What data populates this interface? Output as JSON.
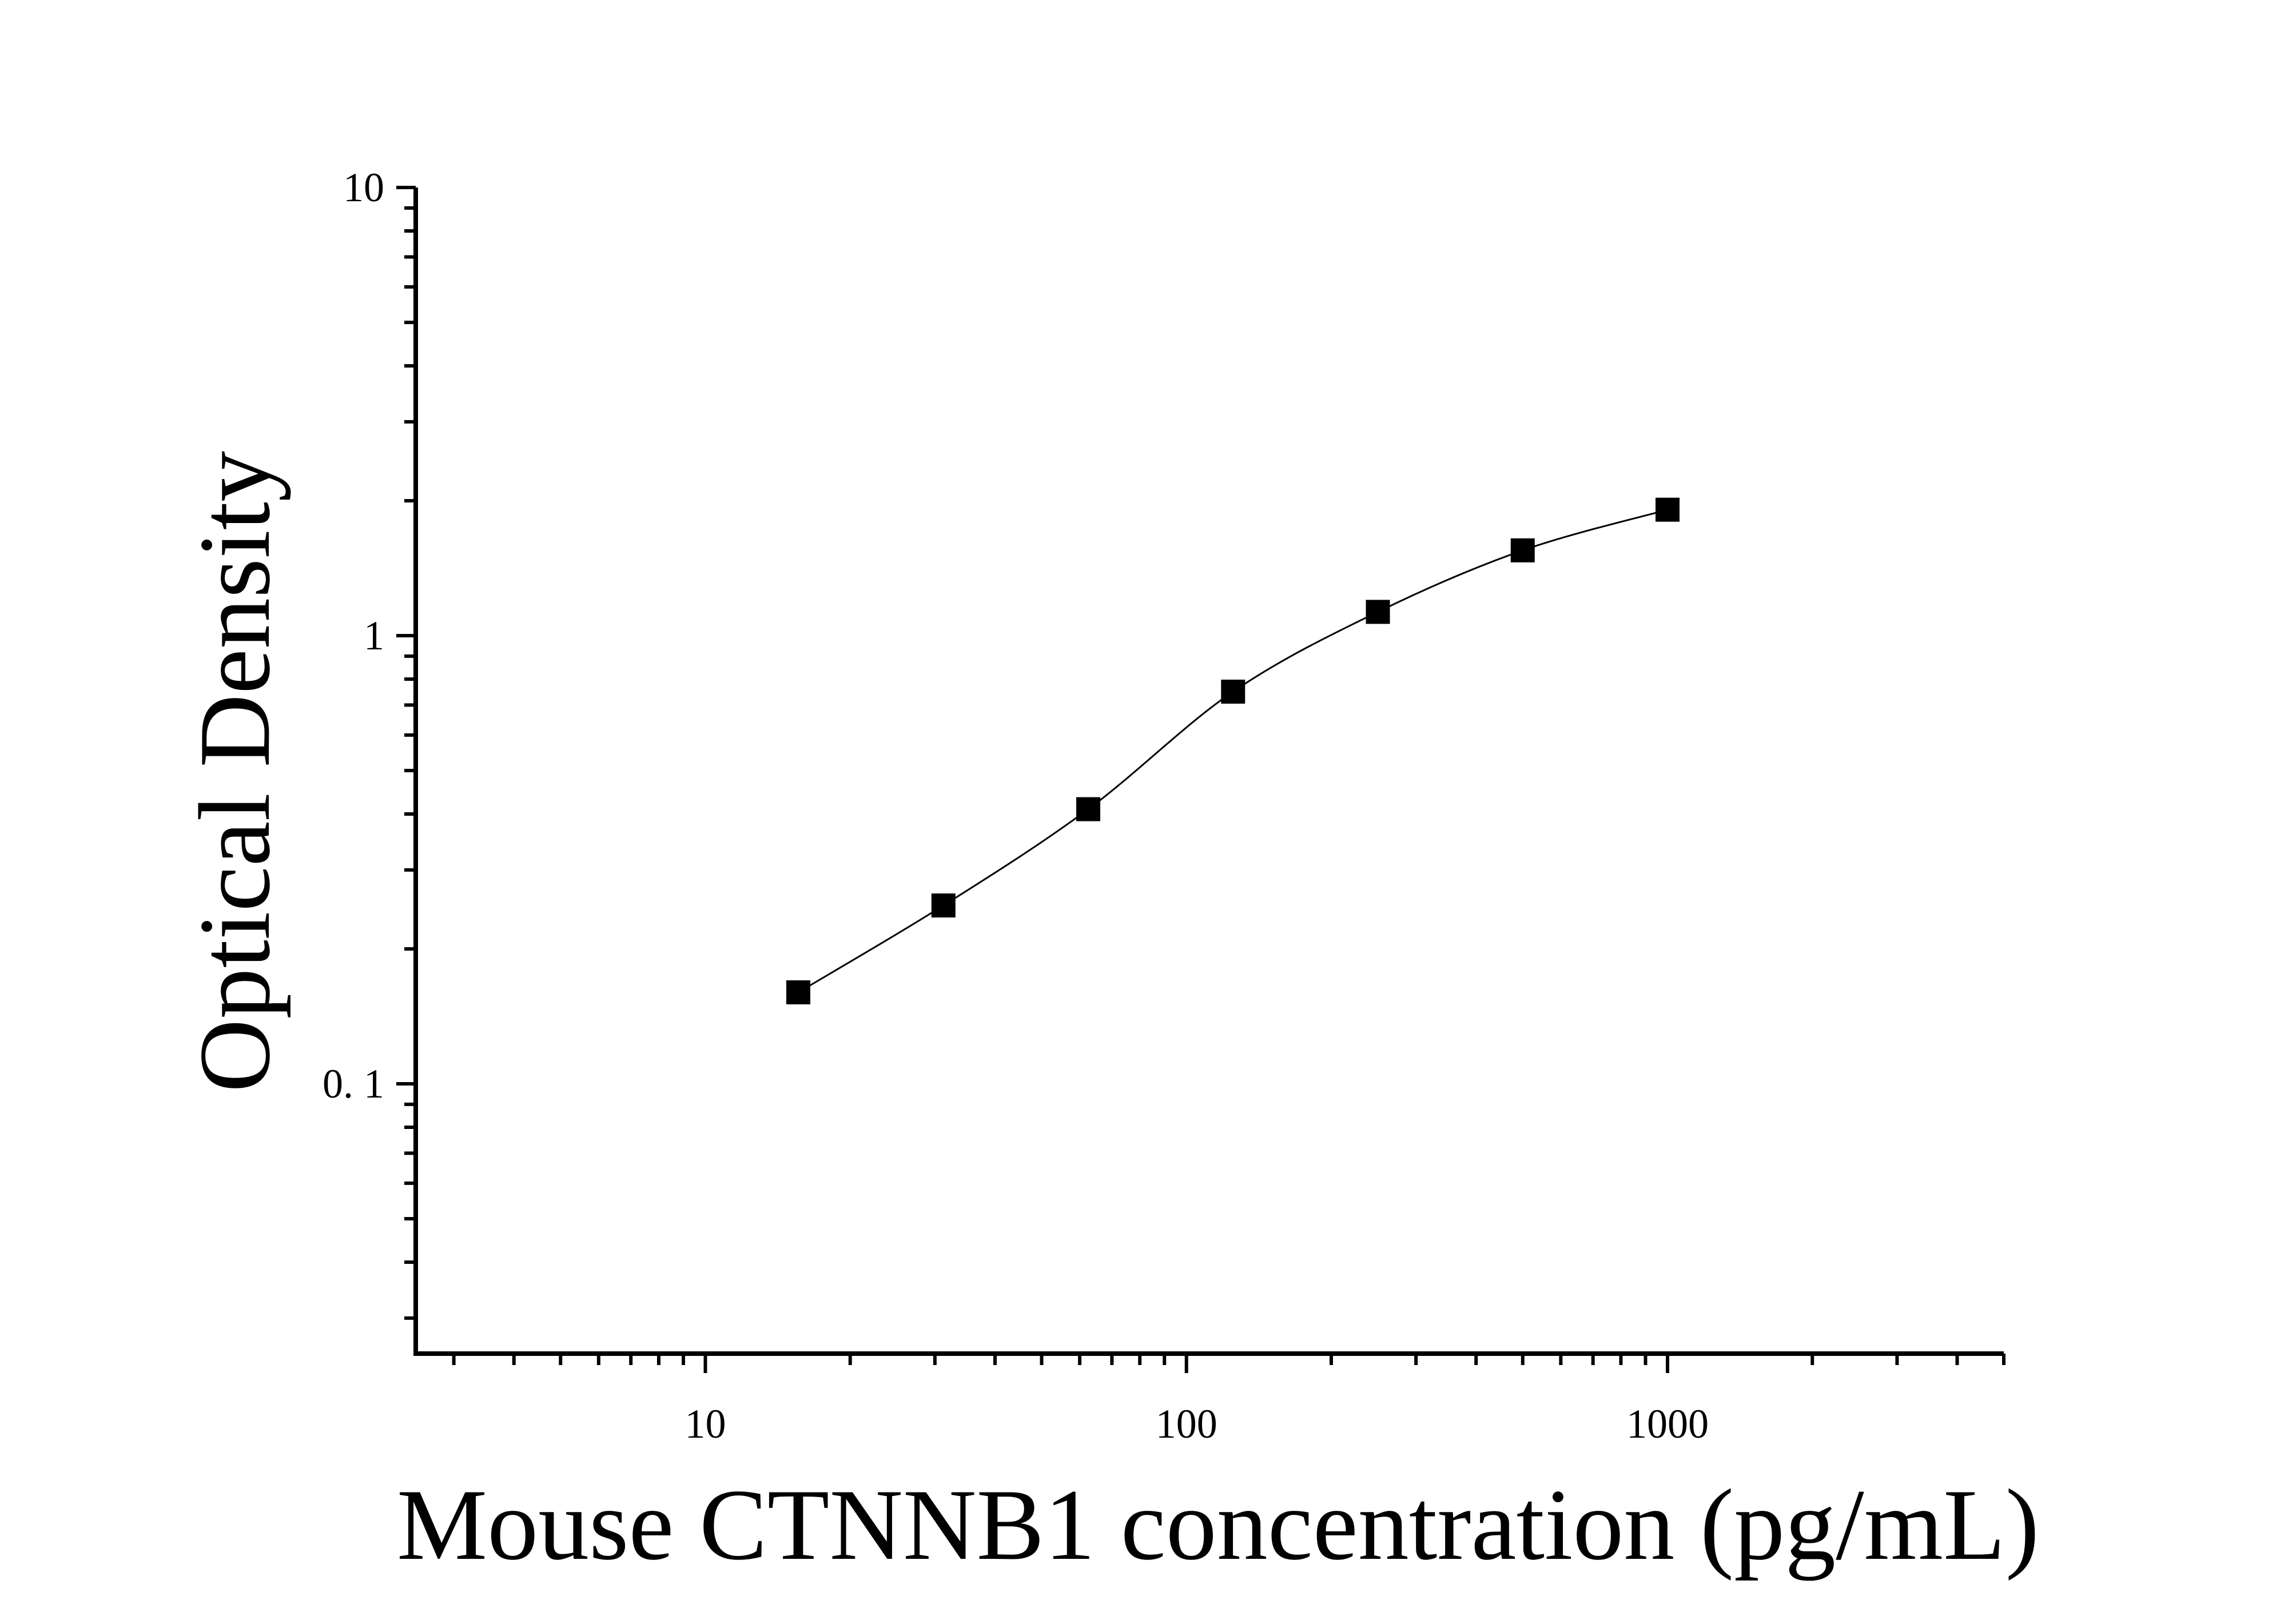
{
  "chart_data": {
    "type": "scatter",
    "xlabel": "Mouse CTNNB1 concentration (pg/mL)",
    "ylabel": "Optical Density",
    "x_scale": "log",
    "y_scale": "log",
    "xlim": [
      2.5,
      5000
    ],
    "ylim": [
      0.025,
      10
    ],
    "x_ticks": [
      {
        "value": 10,
        "label": "10"
      },
      {
        "value": 100,
        "label": "100"
      },
      {
        "value": 1000,
        "label": "1000"
      }
    ],
    "y_ticks": [
      {
        "value": 0.1,
        "label": "0. 1"
      },
      {
        "value": 1,
        "label": "1"
      },
      {
        "value": 10,
        "label": "10"
      }
    ],
    "grid": false,
    "legend": "none",
    "series": [
      {
        "x": [
          15.6,
          31.25,
          62.5,
          125,
          250,
          500,
          1000
        ],
        "y": [
          0.16,
          0.25,
          0.41,
          0.75,
          1.13,
          1.55,
          1.91
        ],
        "marker": "square",
        "fitted_curve": true,
        "color": "#000000"
      }
    ]
  }
}
